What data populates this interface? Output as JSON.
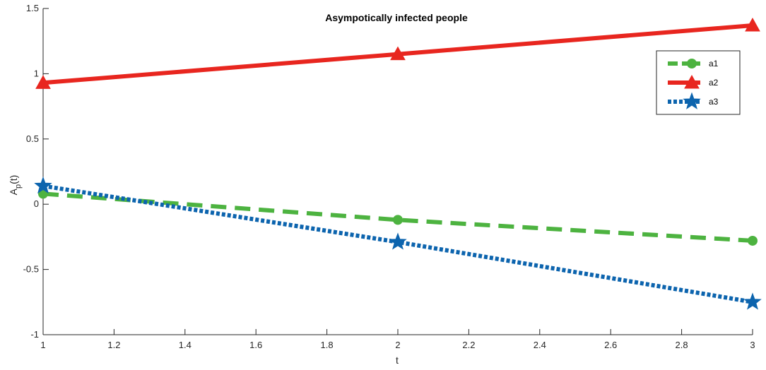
{
  "chart_data": {
    "type": "line",
    "title": "Asympotically infected people",
    "xlabel": "t",
    "ylabel": "A_p(t)",
    "ylabel_main": "A",
    "ylabel_sub": "p",
    "ylabel_rest": "(t)",
    "xlim": [
      1,
      3
    ],
    "ylim": [
      -1,
      1.5
    ],
    "xticks": [
      1,
      1.2,
      1.4,
      1.6,
      1.8,
      2,
      2.2,
      2.4,
      2.6,
      2.8,
      3
    ],
    "xtick_labels": [
      "1",
      "1.2",
      "1.4",
      "1.6",
      "1.8",
      "2",
      "2.2",
      "2.4",
      "2.6",
      "2.8",
      "3"
    ],
    "yticks": [
      -1,
      -0.5,
      0,
      0.5,
      1,
      1.5
    ],
    "ytick_labels": [
      "-1",
      "-0.5",
      "0",
      "0.5",
      "1",
      "1.5"
    ],
    "grid": false,
    "legend_position": "top-right",
    "x": [
      1,
      2,
      3
    ],
    "series": [
      {
        "name": "a1",
        "values": [
          0.08,
          -0.12,
          -0.28
        ],
        "color": "#4db340",
        "line_style": "dashed",
        "marker": "circle"
      },
      {
        "name": "a2",
        "values": [
          0.93,
          1.15,
          1.37
        ],
        "color": "#e8261f",
        "line_style": "solid",
        "marker": "triangle"
      },
      {
        "name": "a3",
        "values": [
          0.14,
          -0.29,
          -0.75
        ],
        "color": "#0c64ae",
        "line_style": "dotted",
        "marker": "star"
      }
    ]
  }
}
